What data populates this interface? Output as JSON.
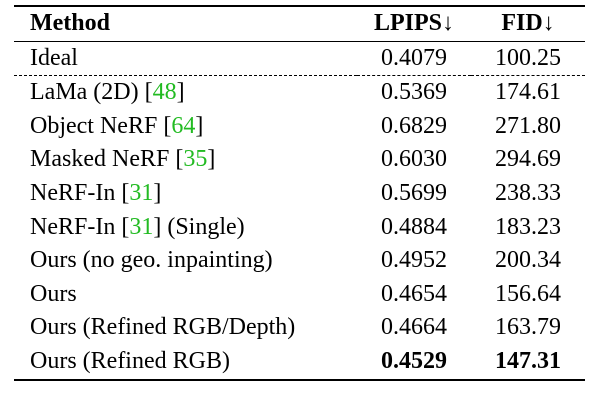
{
  "table": {
    "headers": {
      "method": "Method",
      "lpips": "LPIPS↓",
      "fid": "FID↓"
    },
    "rows": [
      {
        "pre": "Ideal",
        "cite": "",
        "post": "",
        "lpips": "0.4079",
        "fid": "100.25"
      },
      {
        "pre": "LaMa (2D) [",
        "cite": "48",
        "post": "]",
        "lpips": "0.5369",
        "fid": "174.61"
      },
      {
        "pre": "Object NeRF [",
        "cite": "64",
        "post": "]",
        "lpips": "0.6829",
        "fid": "271.80"
      },
      {
        "pre": "Masked NeRF [",
        "cite": "35",
        "post": "]",
        "lpips": "0.6030",
        "fid": "294.69"
      },
      {
        "pre": "NeRF-In [",
        "cite": "31",
        "post": "]",
        "lpips": "0.5699",
        "fid": "238.33"
      },
      {
        "pre": "NeRF-In [",
        "cite": "31",
        "post": "] (Single)",
        "lpips": "0.4884",
        "fid": "183.23"
      },
      {
        "pre": "Ours (no geo. inpainting)",
        "cite": "",
        "post": "",
        "lpips": "0.4952",
        "fid": "200.34"
      },
      {
        "pre": "Ours",
        "cite": "",
        "post": "",
        "lpips": "0.4654",
        "fid": "156.64"
      },
      {
        "pre": "Ours (Refined RGB/Depth)",
        "cite": "",
        "post": "",
        "lpips": "0.4664",
        "fid": "163.79"
      },
      {
        "pre": "Ours (Refined RGB)",
        "cite": "",
        "post": "",
        "lpips": "0.4529",
        "fid": "147.31"
      }
    ]
  },
  "colors": {
    "citation": "#22bb22",
    "text": "#000000"
  }
}
